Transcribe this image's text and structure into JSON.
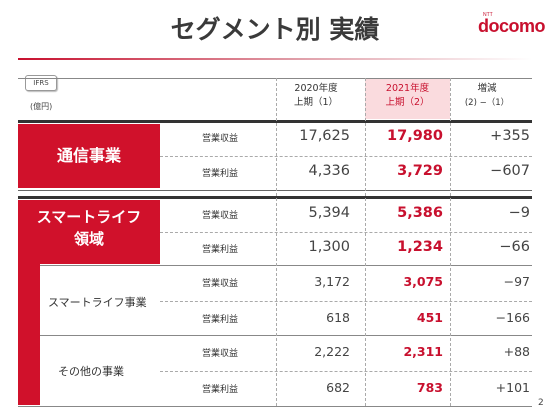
{
  "header": {
    "title": "セグメント別 実績",
    "logo": "docomo",
    "logo_sup": "NTT"
  },
  "table_meta": {
    "ifrs": "IFRS",
    "unit": "(億円)",
    "col_a": {
      "line1": "2020年度",
      "line2": "上期（1）"
    },
    "col_b": {
      "line1": "2021年度",
      "line2": "上期（2）"
    },
    "col_c": {
      "line1": "増減",
      "line2": "(2) −（1）"
    }
  },
  "segments": {
    "tsushin": {
      "label": "通信事業",
      "rows": [
        {
          "label": "営業収益",
          "a": "17,625",
          "b": "17,980",
          "c": "+355"
        },
        {
          "label": "営業利益",
          "a": "4,336",
          "b": "3,729",
          "c": "−607"
        }
      ]
    },
    "smartlife": {
      "label_line1": "スマートライフ",
      "label_line2": "領域",
      "rows": [
        {
          "label": "営業収益",
          "a": "5,394",
          "b": "5,386",
          "c": "−9"
        },
        {
          "label": "営業利益",
          "a": "1,300",
          "b": "1,234",
          "c": "−66"
        }
      ]
    },
    "smartlife_business": {
      "label": "スマートライフ事業",
      "rows": [
        {
          "label": "営業収益",
          "a": "3,172",
          "b": "3,075",
          "c": "−97"
        },
        {
          "label": "営業利益",
          "a": "618",
          "b": "451",
          "c": "−166"
        }
      ]
    },
    "other_business": {
      "label": "その他の事業",
      "rows": [
        {
          "label": "営業収益",
          "a": "2,222",
          "b": "2,311",
          "c": "+88"
        },
        {
          "label": "営業利益",
          "a": "682",
          "b": "783",
          "c": "+101"
        }
      ]
    }
  },
  "footer": {
    "page": "2"
  },
  "colors": {
    "accent": "#c8102e",
    "segment_fill": "#d0112b",
    "highlight": "#fadbde"
  }
}
